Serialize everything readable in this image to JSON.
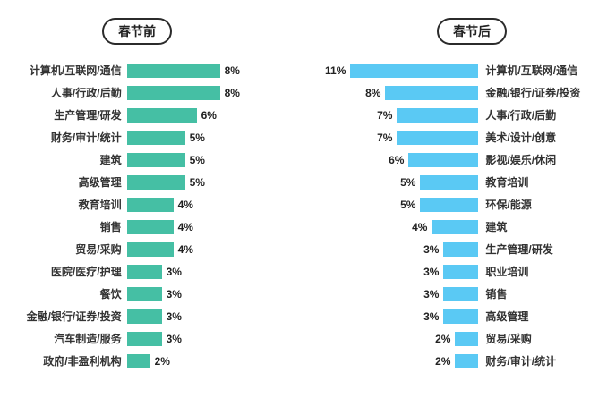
{
  "header": {
    "left_pill": "春节前",
    "right_pill": "春节后"
  },
  "colors": {
    "left_bar": "#45BFA4",
    "right_bar": "#5AC9F4",
    "pill_border": "#2B2B2B",
    "text": "#222222"
  },
  "chart_data": {
    "type": "bar",
    "layout": "tornado-two-sided",
    "unit": "%",
    "max_value": 11,
    "legend_position": "top-pills",
    "grid": false,
    "charts": [
      {
        "name": "春节前",
        "side": "left",
        "color": "#45BFA4",
        "categories": [
          "计算机/互联网/通信",
          "人事/行政/后勤",
          "生产管理/研发",
          "财务/审计/统计",
          "建筑",
          "高级管理",
          "教育培训",
          "销售",
          "贸易/采购",
          "医院/医疗/护理",
          "餐饮",
          "金融/银行/证券/投资",
          "汽车制造/服务",
          "政府/非盈利机构"
        ],
        "values": [
          8,
          8,
          6,
          5,
          5,
          5,
          4,
          4,
          4,
          3,
          3,
          3,
          3,
          2
        ]
      },
      {
        "name": "春节后",
        "side": "right",
        "color": "#5AC9F4",
        "categories": [
          "计算机/互联网/通信",
          "金融/银行/证券/投资",
          "人事/行政/后勤",
          "美术/设计/创意",
          "影视/娱乐/休闲",
          "教育培训",
          "环保/能源",
          "建筑",
          "生产管理/研发",
          "职业培训",
          "销售",
          "高级管理",
          "贸易/采购",
          "财务/审计/统计"
        ],
        "values": [
          11,
          8,
          7,
          7,
          6,
          5,
          5,
          4,
          3,
          3,
          3,
          3,
          2,
          2
        ]
      }
    ]
  }
}
